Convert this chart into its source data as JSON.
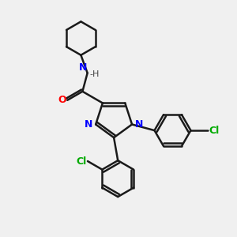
{
  "background_color": "#f0f0f0",
  "bond_color": "#1a1a1a",
  "N_color": "#0000ff",
  "O_color": "#ff0000",
  "Cl_color": "#00aa00",
  "line_width": 1.8,
  "font_size": 9,
  "figsize": [
    3.0,
    3.0
  ],
  "dpi": 100,
  "xlim": [
    0,
    10
  ],
  "ylim": [
    0,
    10
  ]
}
